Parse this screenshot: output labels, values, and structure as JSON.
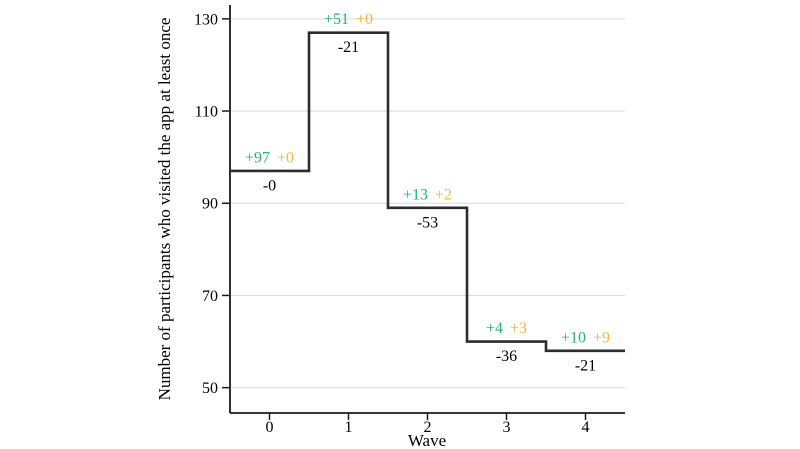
{
  "chart_data": {
    "type": "line",
    "subtype": "step",
    "title": "",
    "xlabel": "Wave",
    "ylabel": "Number of participants who visited the app at least once",
    "x": [
      0,
      1,
      2,
      3,
      4
    ],
    "values": [
      97,
      127,
      89,
      60,
      58
    ],
    "x_tick_labels": [
      "0",
      "1",
      "2",
      "3",
      "4"
    ],
    "y_ticks": [
      50,
      70,
      90,
      110,
      130
    ],
    "xlim": [
      -0.5,
      4.5
    ],
    "ylim": [
      44.5,
      133
    ],
    "grid": "horizontal-major-only",
    "legend": "none",
    "annotations": [
      {
        "wave": 0,
        "gained": "+97",
        "regained": "+0",
        "lost": "-0"
      },
      {
        "wave": 1,
        "gained": "+51",
        "regained": "+0",
        "lost": "-21"
      },
      {
        "wave": 2,
        "gained": "+13",
        "regained": "+2",
        "lost": "-53"
      },
      {
        "wave": 3,
        "gained": "+4",
        "regained": "+3",
        "lost": "-36"
      },
      {
        "wave": 4,
        "gained": "+10",
        "regained": "+9",
        "lost": "-21"
      }
    ],
    "colors": {
      "gained": "#22b573",
      "regained": "#f2b63c",
      "lost": "#e8443a",
      "step_line": "#2d2d2d",
      "grid": "#d9d9d9",
      "axis": "#1a1a1a",
      "text": "#000000",
      "background": "#ffffff"
    }
  }
}
